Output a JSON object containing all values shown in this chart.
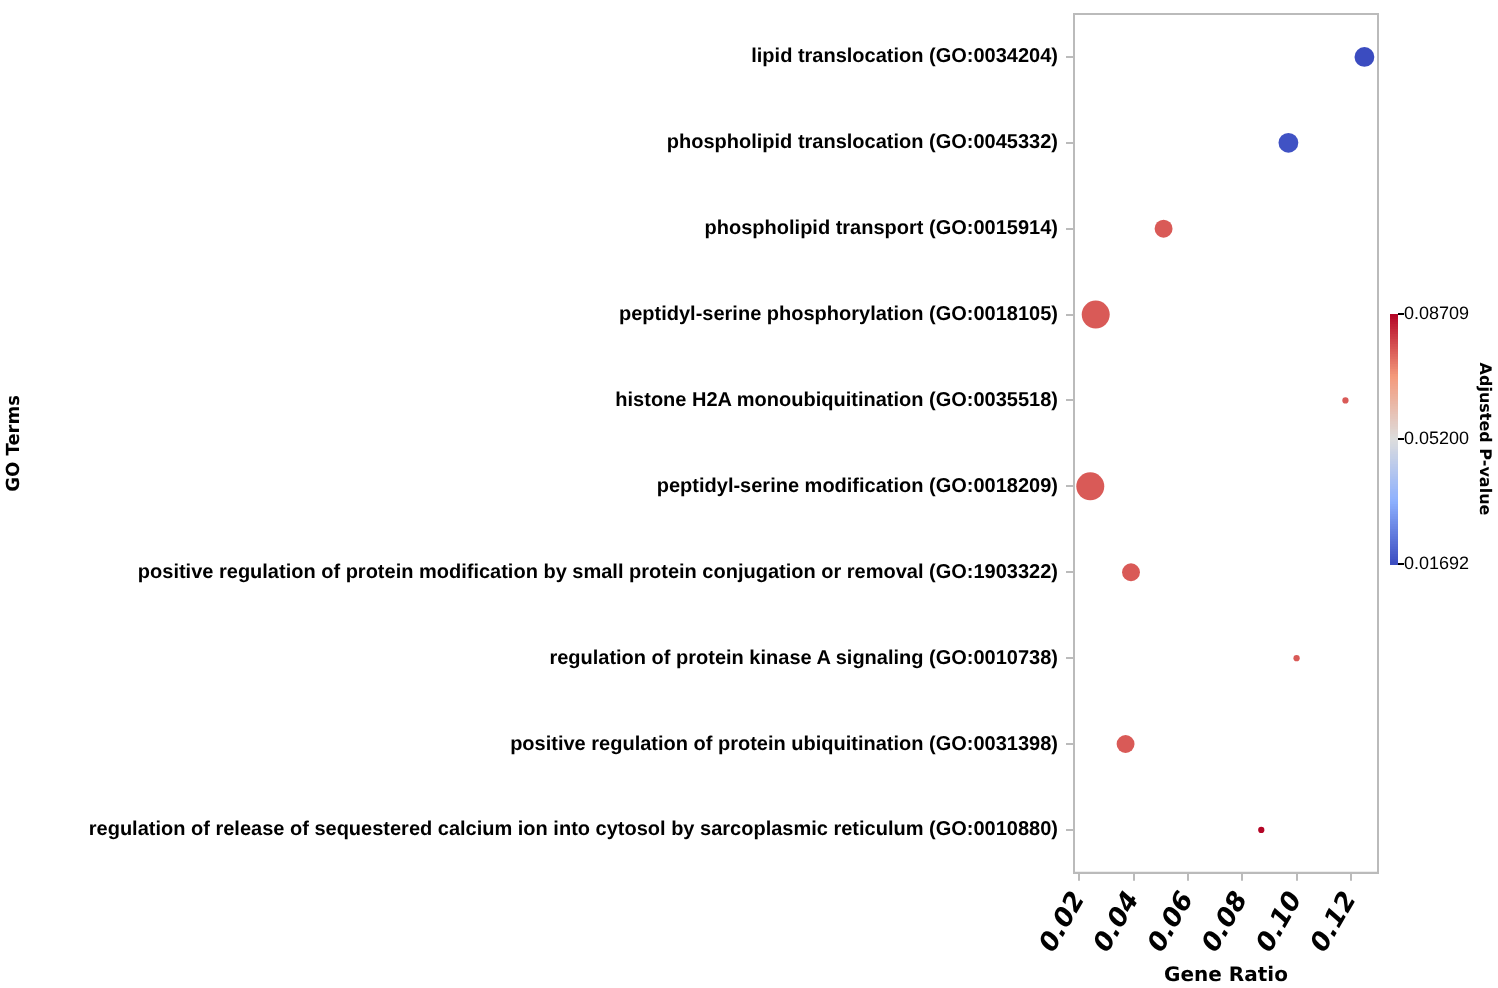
{
  "chart_data": {
    "type": "bubble",
    "orientation": "horizontal",
    "xlabel": "Gene Ratio",
    "ylabel": "GO Terms",
    "clabel": "Adjusted P-value",
    "categories": [
      "lipid translocation (GO:0034204)",
      "phospholipid translocation (GO:0045332)",
      "phospholipid transport (GO:0015914)",
      "peptidyl-serine phosphorylation (GO:0018105)",
      "histone H2A monoubiquitination (GO:0035518)",
      "peptidyl-serine modification (GO:0018209)",
      "positive regulation of protein modification by small protein conjugation or removal (GO:1903322)",
      "regulation of protein kinase A signaling (GO:0010738)",
      "positive regulation of protein ubiquitination (GO:0031398)",
      "regulation of release of sequestered calcium ion into cytosol by sarcoplasmic reticulum (GO:0010880)"
    ],
    "values": [
      0.125,
      0.097,
      0.051,
      0.026,
      0.118,
      0.024,
      0.039,
      0.1,
      0.037,
      0.087
    ],
    "sizes": [
      0.5,
      0.5,
      0.41,
      1,
      0.05,
      1,
      0.41,
      0.05,
      0.41,
      0.05
    ],
    "cvalues": [
      0.017,
      0.018,
      0.077,
      0.077,
      0.077,
      0.077,
      0.077,
      0.077,
      0.077,
      0.087
    ],
    "xlim": [
      0.018,
      0.13
    ],
    "xticks": [
      0.02,
      0.04,
      0.06,
      0.08,
      {
        "value": 0.1,
        "label": "0.10"
      },
      0.12
    ],
    "clim": [
      0.01692,
      0.08709
    ],
    "cticks": [
      0.01692,
      {
        "value": 0.052,
        "label": "0.05200"
      },
      0.08709
    ],
    "grid": false,
    "legend": false
  }
}
